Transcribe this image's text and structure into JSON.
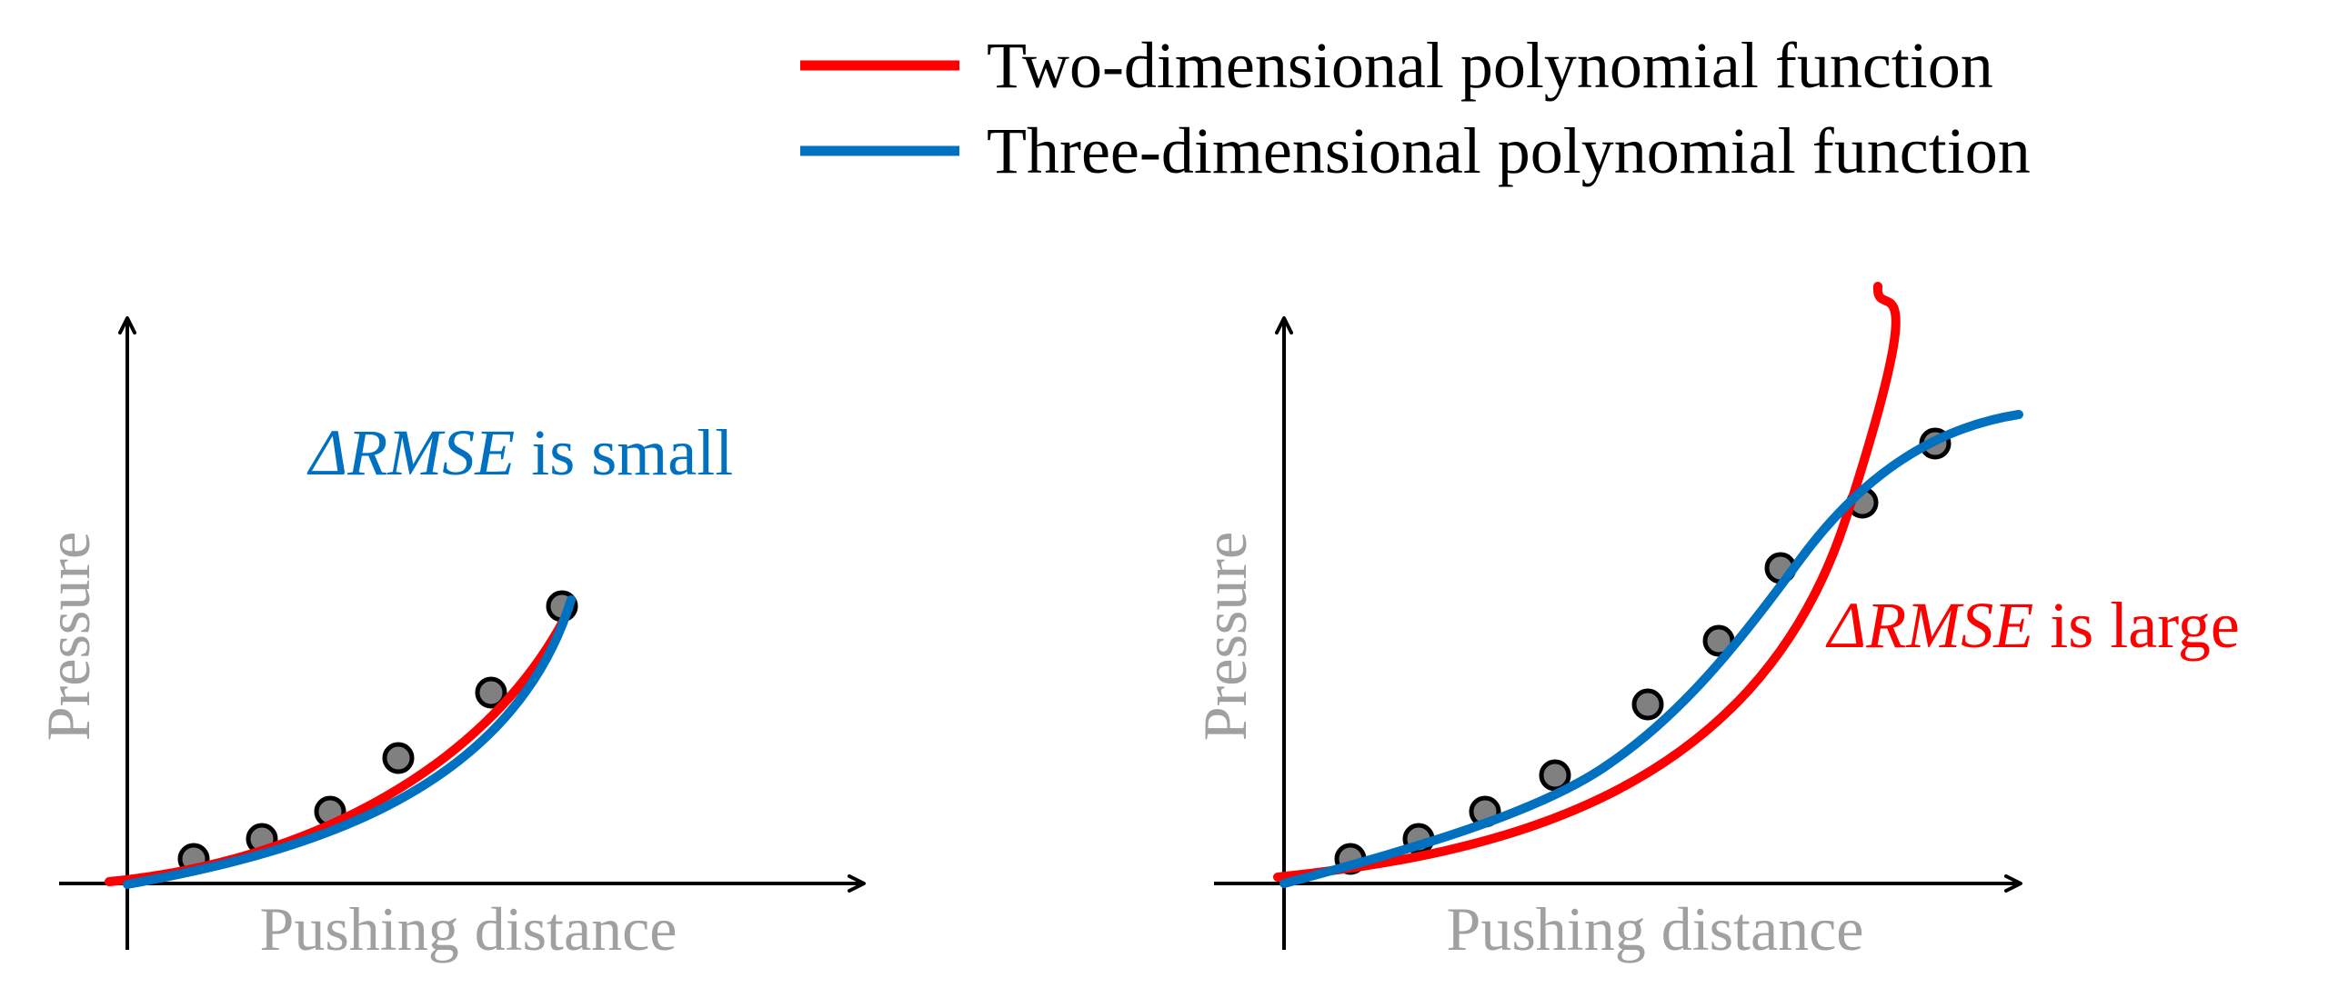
{
  "colors": {
    "quadratic": "#ff0000",
    "cubic": "#0070c0",
    "axis": "#000000",
    "label": "#a0a0a0",
    "marker_fill": "#808080",
    "marker_stroke": "#000000"
  },
  "legend": {
    "items": [
      {
        "label": "Two-dimensional polynomial function",
        "color": "#ff0000"
      },
      {
        "label": "Three-dimensional polynomial function",
        "color": "#0070c0"
      }
    ]
  },
  "panels": [
    {
      "xlabel": "Pushing distance",
      "ylabel": "Pressure",
      "annotation": {
        "symbol": "ΔRMSE",
        "text": " is small",
        "color": "#0070c0"
      }
    },
    {
      "xlabel": "Pushing distance",
      "ylabel": "Pressure",
      "annotation": {
        "symbol": "ΔRMSE",
        "text": " is large",
        "color": "#ff0000"
      }
    }
  ]
}
